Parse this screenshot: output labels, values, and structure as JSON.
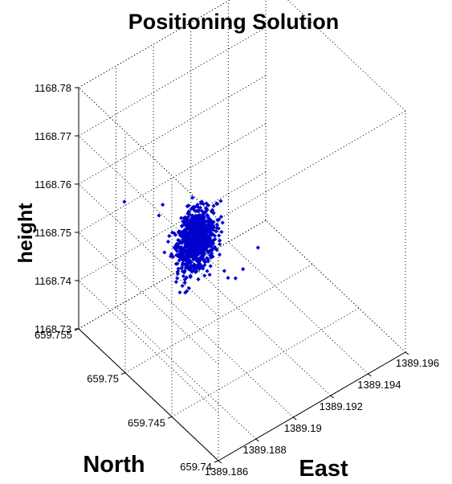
{
  "chart_data": {
    "type": "scatter",
    "title": "Positioning Solution",
    "xlabel": "East",
    "ylabel": "North",
    "zlabel": "height",
    "xlim": [
      1389.186,
      1389.196
    ],
    "ylim": [
      659.74,
      659.755
    ],
    "zlim": [
      1168.73,
      1168.78
    ],
    "xticks": [
      1389.186,
      1389.188,
      1389.19,
      1389.192,
      1389.194,
      1389.196
    ],
    "yticks": [
      659.74,
      659.745,
      659.75,
      659.755
    ],
    "zticks": [
      1168.73,
      1168.74,
      1168.75,
      1168.76,
      1168.77,
      1168.78
    ],
    "xtick_labels": [
      "1389.186",
      "1389.188",
      "1389.19",
      "1389.192",
      "1389.194",
      "1389.196"
    ],
    "ytick_labels": [
      "659.74",
      "659.745",
      "659.75",
      "659.755"
    ],
    "ztick_labels": [
      "1168.73",
      "1168.74",
      "1168.75",
      "1168.76",
      "1168.77",
      "1168.78"
    ],
    "grid": true,
    "marker_color": "#0000cc",
    "cluster_center": {
      "x": 1389.1895,
      "y": 659.7495,
      "z": 1168.7505
    },
    "cluster_spread": {
      "x": 0.0005,
      "y": 0.0012,
      "z": 0.0022
    },
    "points": [
      {
        "x": 1389.1872,
        "y": 659.7525,
        "z": 1168.7582
      },
      {
        "x": 1389.1925,
        "y": 659.7488,
        "z": 1168.7435
      },
      {
        "x": 1389.1904,
        "y": 659.7482,
        "z": 1168.7445
      },
      {
        "x": 1389.1912,
        "y": 659.7478,
        "z": 1168.7438
      },
      {
        "x": 1389.1905,
        "y": 659.748,
        "z": 1168.7432
      },
      {
        "x": 1389.1886,
        "y": 659.7512,
        "z": 1168.7568
      },
      {
        "x": 1389.1882,
        "y": 659.7508,
        "z": 1168.7562
      },
      {
        "x": 1389.1908,
        "y": 659.7478,
        "z": 1168.7428
      }
    ]
  }
}
